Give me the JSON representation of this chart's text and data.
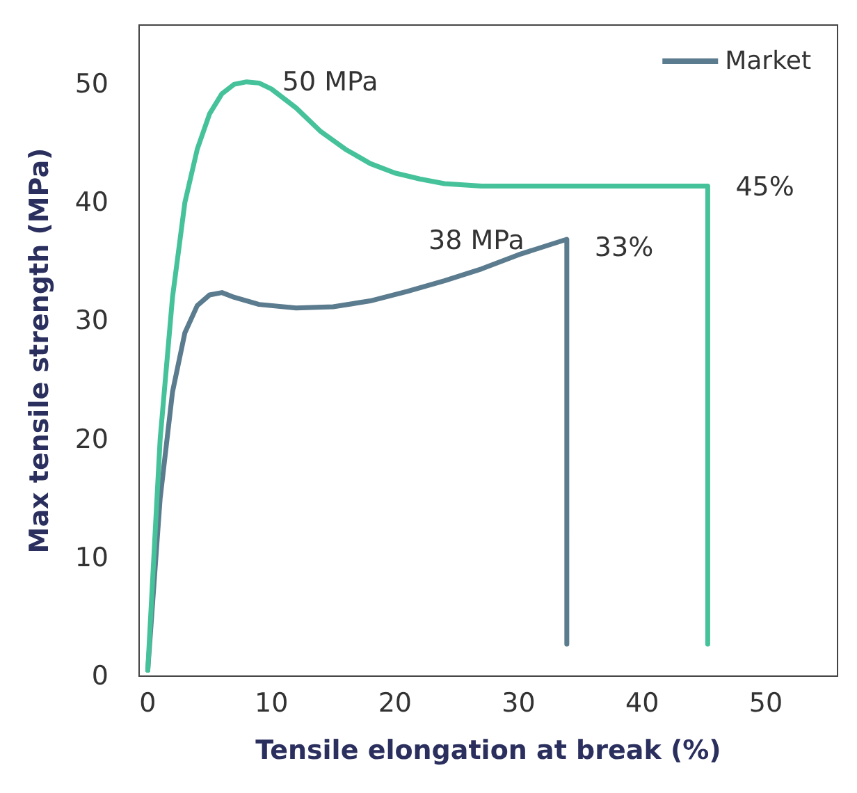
{
  "chart_data": {
    "type": "line",
    "xlabel": "Tensile elongation at break (%)",
    "ylabel": "Max tensile strength (MPa)",
    "xlim": [
      -0.7,
      55.8
    ],
    "ylim": [
      0,
      55
    ],
    "xticks": [
      0,
      10,
      20,
      30,
      40,
      50
    ],
    "yticks": [
      0,
      10,
      20,
      30,
      40,
      50
    ],
    "grid": false,
    "legend": "top right",
    "marker": "none",
    "line_style": "solid",
    "series": [
      {
        "name": "Market",
        "color": "#5b7b8e",
        "x": [
          0,
          1,
          2,
          3,
          4,
          5,
          6,
          7,
          9,
          12,
          15,
          18,
          21,
          24,
          27,
          30,
          33.9,
          33.9
        ],
        "values": [
          0.5,
          15,
          24,
          29,
          31.3,
          32.2,
          32.4,
          32,
          31.4,
          31.1,
          31.2,
          31.7,
          32.5,
          33.4,
          34.4,
          35.6,
          36.9,
          2.7
        ]
      },
      {
        "color": "#45c29a",
        "x": [
          0,
          1,
          2,
          3,
          4,
          5,
          6,
          7,
          8,
          9,
          10,
          12,
          14,
          16,
          18,
          20,
          22,
          24,
          27,
          30,
          45.3,
          45.3
        ],
        "values": [
          0.5,
          20,
          32,
          40,
          44.5,
          47.5,
          49.2,
          50,
          50.2,
          50.1,
          49.6,
          48,
          46,
          44.5,
          43.3,
          42.5,
          42,
          41.6,
          41.4,
          41.4,
          41.4,
          2.7
        ]
      }
    ],
    "annotations": [
      {
        "text": "50 MPa",
        "x": 8,
        "y": 50.2
      },
      {
        "text": "38 MPa",
        "x": 33.9,
        "y": 36.9
      },
      {
        "text": "33%",
        "x": 33.9,
        "y": 36.9
      },
      {
        "text": "45%",
        "x": 45.3,
        "y": 41.4
      }
    ]
  }
}
